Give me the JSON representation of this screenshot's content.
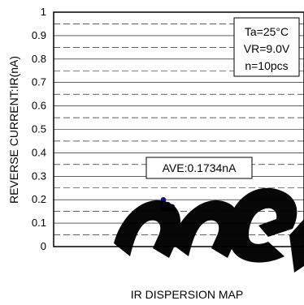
{
  "chart_data": {
    "type": "scatter",
    "title": "",
    "xlabel": "IR DISPERSION MAP",
    "ylabel": "REVERSE CURRENT:IR(nA)",
    "ylim": [
      0,
      1
    ],
    "yticks": [
      "0",
      "0.1",
      "0.2",
      "0.3",
      "0.4",
      "0.5",
      "0.6",
      "0.7",
      "0.8",
      "0.9",
      "1"
    ],
    "grid": true,
    "conditions": [
      "Ta=25°C",
      "VR=9.0V",
      "n=10pcs"
    ],
    "annotation": "AVE:0.1734nA",
    "series": [
      {
        "values": [
          0.16,
          0.16,
          0.16,
          0.17,
          0.17,
          0.17,
          0.18,
          0.18,
          0.19,
          0.2
        ]
      }
    ],
    "marker_color": "#101090"
  }
}
